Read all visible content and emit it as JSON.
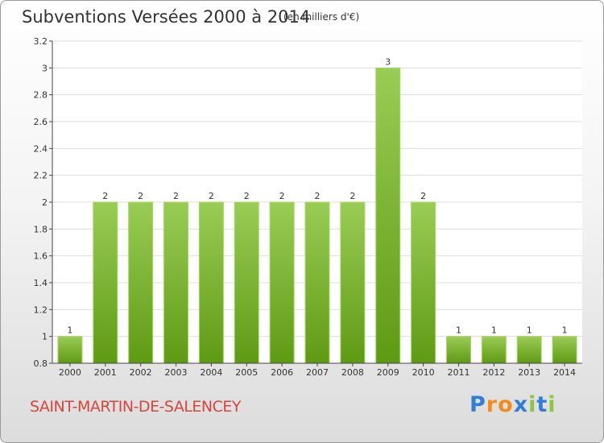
{
  "title": "Subventions Versées 2000 à 2014",
  "subtitle": "(en milliers d'€)",
  "commune": "SAINT-MARTIN-DE-SALENCEY",
  "logo": {
    "letters": [
      "P",
      "r",
      "o",
      "x",
      "i",
      "t",
      "i"
    ],
    "colors": [
      "#2f7fd6",
      "#f28c1c",
      "#f28c1c",
      "#2f7fd6",
      "#8cc63f",
      "#2f7fd6",
      "#8cc63f"
    ]
  },
  "colors": {
    "bar_top": "#99cc55",
    "bar_bottom": "#5f9a14",
    "bar_edge": "#a8d864",
    "grid": "#dddddd",
    "axis": "#444444",
    "commune_text": "#d8453b"
  },
  "chart_data": {
    "type": "bar",
    "categories": [
      "2000",
      "2001",
      "2002",
      "2003",
      "2004",
      "2005",
      "2006",
      "2007",
      "2008",
      "2009",
      "2010",
      "2011",
      "2012",
      "2013",
      "2014"
    ],
    "values": [
      1,
      2,
      2,
      2,
      2,
      2,
      2,
      2,
      2,
      3,
      2,
      1,
      1,
      1,
      1
    ],
    "data_labels": [
      "1",
      "2",
      "2",
      "2",
      "2",
      "2",
      "2",
      "2",
      "2",
      "3",
      "2",
      "1",
      "1",
      "1",
      "1"
    ],
    "title": "Subventions Versées 2000 à 2014",
    "ylim": [
      0.8,
      3.2
    ],
    "yticks": [
      "0.8",
      "1",
      "1.2",
      "1.4",
      "1.6",
      "1.8",
      "2",
      "2.2",
      "2.4",
      "2.6",
      "2.8",
      "3",
      "3.2"
    ],
    "grid": true,
    "legend": "none"
  }
}
